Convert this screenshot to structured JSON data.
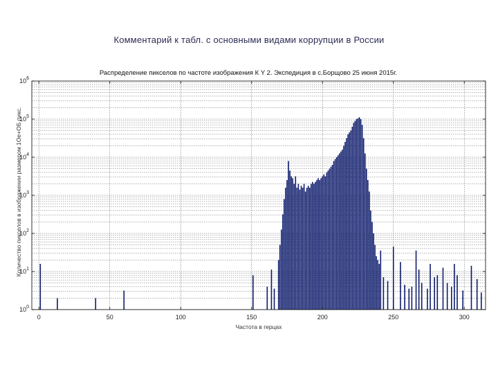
{
  "slide": {
    "title": "Комментарий к табл. с основными видами коррупции в России"
  },
  "chart_data": {
    "type": "bar",
    "title": "Распределение пикселов по частоте изображения К Y 2. Экспедиция в с.Борщово 25 июня 2015г.",
    "xlabel": "Частота в герцах",
    "ylabel": "Количество пикселов в изображении размером 1Ое+ОБ пикс.",
    "scale": "log-y",
    "xlim": [
      -5,
      315
    ],
    "ylim_log10": [
      0,
      6
    ],
    "grid": true,
    "x_ticks": [
      "0",
      "50",
      "100",
      "150",
      "200",
      "250",
      "300"
    ],
    "x_tick_values": [
      0,
      50,
      100,
      150,
      200,
      250,
      300
    ],
    "y_ticks": [
      "10^0",
      "10^1",
      "10^2",
      "10^3",
      "10^4",
      "10^5",
      "10^6"
    ],
    "y_tick_values": [
      0,
      1,
      2,
      3,
      4,
      5,
      6
    ],
    "bars_x": [
      1,
      13,
      40,
      60,
      151,
      161,
      164,
      166,
      169,
      170,
      171,
      172,
      173,
      174,
      175,
      176,
      177,
      178,
      179,
      180,
      181,
      182,
      183,
      184,
      185,
      186,
      187,
      188,
      189,
      190,
      191,
      192,
      193,
      194,
      195,
      196,
      197,
      198,
      199,
      200,
      201,
      202,
      203,
      204,
      205,
      206,
      207,
      208,
      209,
      210,
      211,
      212,
      213,
      214,
      215,
      216,
      217,
      218,
      219,
      220,
      221,
      222,
      223,
      224,
      225,
      226,
      227,
      228,
      229,
      230,
      231,
      232,
      233,
      234,
      235,
      236,
      237,
      238,
      239,
      240,
      241,
      243,
      246,
      250,
      255,
      258,
      261,
      263,
      266,
      268,
      270,
      274,
      276,
      279,
      281,
      285,
      288,
      291,
      293,
      295,
      299,
      305,
      309,
      312
    ],
    "bars_log10": [
      1.2,
      0.3,
      0.3,
      0.5,
      0.9,
      0.6,
      1.05,
      0.55,
      1.3,
      1.7,
      2.1,
      2.5,
      2.9,
      3.2,
      3.4,
      3.9,
      3.65,
      3.5,
      3.45,
      3.3,
      3.5,
      3.2,
      3.3,
      3.15,
      3.25,
      3.2,
      3.3,
      3.1,
      3.2,
      3.25,
      3.2,
      3.3,
      3.35,
      3.3,
      3.35,
      3.4,
      3.45,
      3.4,
      3.45,
      3.5,
      3.55,
      3.5,
      3.6,
      3.65,
      3.7,
      3.75,
      3.8,
      3.9,
      3.95,
      4.0,
      4.05,
      4.1,
      4.15,
      4.2,
      4.3,
      4.4,
      4.5,
      4.6,
      4.65,
      4.7,
      4.8,
      4.9,
      4.95,
      5.0,
      5.02,
      5.05,
      5.0,
      4.85,
      4.5,
      4.1,
      3.7,
      3.4,
      3.1,
      2.6,
      2.3,
      2.0,
      1.7,
      1.4,
      1.3,
      1.2,
      1.55,
      0.85,
      0.75,
      1.65,
      1.25,
      0.65,
      0.55,
      0.6,
      1.55,
      1.05,
      0.7,
      0.55,
      1.2,
      0.85,
      0.9,
      1.1,
      0.7,
      0.6,
      1.2,
      0.9,
      0.5,
      1.15,
      0.8,
      0.45
    ],
    "bar_color": "#0c1a6b",
    "grid_color": "#555555"
  }
}
